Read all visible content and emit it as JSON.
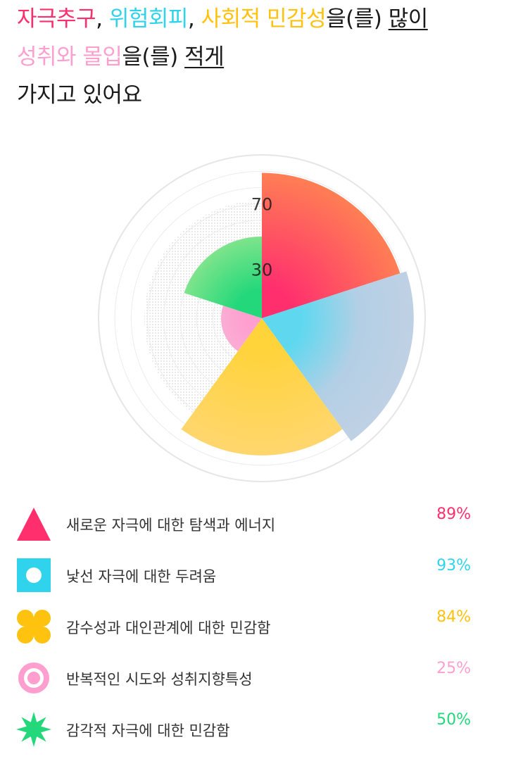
{
  "headline": {
    "line1": {
      "trait1": "자극추구",
      "sep1": ", ",
      "trait2": "위험회피",
      "sep2": ", ",
      "trait3": "사회적 민감성",
      "particle": "을(를) ",
      "emphasis": "많이"
    },
    "line2": {
      "trait4": "성취와 몰입",
      "particle": "을(를) ",
      "emphasis": "적게"
    },
    "line3": "가지고 있어요"
  },
  "colors": {
    "novelty": "#ff2f6e",
    "harm": "#2fd3ec",
    "reward": "#ffc20e",
    "persistence": "#ff9fcf",
    "sensory": "#22d87a"
  },
  "chart_data": {
    "type": "polar-area",
    "tick_labels": [
      "70",
      "30"
    ],
    "categories": [
      "새로운 자극에 대한 탐색과 에너지",
      "낯선 자극에 대한 두려움",
      "감수성과 대인관계에 대한 민감함",
      "반복적인 시도와 성취지향특성",
      "감각적 자극에 대한 민감함"
    ],
    "values": [
      89,
      93,
      84,
      25,
      50
    ],
    "ylim": [
      0,
      100
    ],
    "grid": true
  },
  "legend": [
    {
      "icon": "triangle-icon",
      "label": "새로운 자극에 대한 탐색과 에너지",
      "value": "89%",
      "color": "#ff2f6e"
    },
    {
      "icon": "square-circle-icon",
      "label": "낯선 자극에 대한 두려움",
      "value": "93%",
      "color": "#2fd3ec"
    },
    {
      "icon": "cross-blob-icon",
      "label": "감수성과 대인관계에 대한 민감함",
      "value": "84%",
      "color": "#ffc20e"
    },
    {
      "icon": "ring-icon",
      "label": "반복적인 시도와 성취지향특성",
      "value": "25%",
      "color": "#ff9fcf"
    },
    {
      "icon": "star-icon",
      "label": "감각적 자극에 대한 민감함",
      "value": "50%",
      "color": "#22d87a"
    }
  ]
}
